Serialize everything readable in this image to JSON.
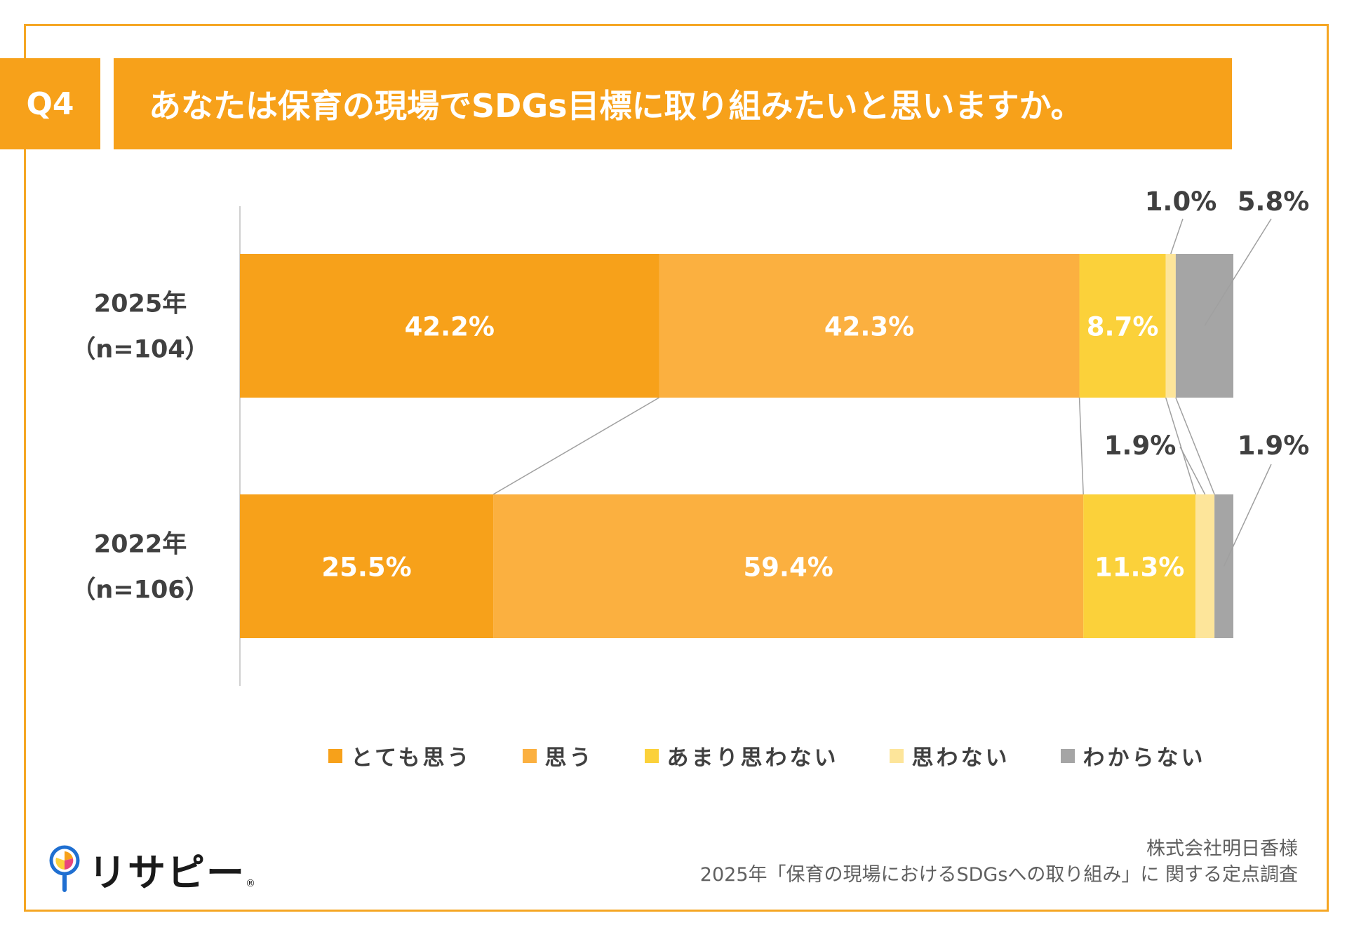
{
  "header": {
    "badge": "Q4",
    "title": "あなたは保育の現場でSDGs目標に取り組みたいと思いますか。"
  },
  "colors": {
    "frame": "#f5a623",
    "header": "#f7a11a",
    "series": [
      "#f7a11a",
      "#fbb040",
      "#fbd13a",
      "#fde59a",
      "#a5a5a5"
    ]
  },
  "chart_data": {
    "type": "bar",
    "orientation": "horizontal",
    "stacked": "100%",
    "categories": [
      {
        "label": "2025年",
        "sublabel": "（n=104）"
      },
      {
        "label": "2022年",
        "sublabel": "（n=106）"
      }
    ],
    "series": [
      {
        "name": "とても思う",
        "values": [
          42.2,
          25.5
        ],
        "labels": [
          "42.2%",
          "25.5%"
        ]
      },
      {
        "name": "思う",
        "values": [
          42.3,
          59.4
        ],
        "labels": [
          "42.3%",
          "59.4%"
        ]
      },
      {
        "name": "あまり思わない",
        "values": [
          8.7,
          11.3
        ],
        "labels": [
          "8.7%",
          "11.3%"
        ]
      },
      {
        "name": "思わない",
        "values": [
          1.0,
          1.9
        ],
        "labels": [
          "1.0%",
          "1.9%"
        ]
      },
      {
        "name": "わからない",
        "values": [
          5.8,
          1.9
        ],
        "labels": [
          "5.8%",
          "1.9%"
        ]
      }
    ],
    "xlim": [
      0,
      100
    ],
    "legend": "bottom",
    "series_lines": true
  },
  "legend": {
    "items": [
      "とても思う",
      "思う",
      "あまり思わない",
      "思わない",
      "わからない"
    ]
  },
  "logo": {
    "text": "リサピー",
    "dot": "®"
  },
  "footer": {
    "line1": "株式会社明日香様",
    "line2": "2025年「保育の現場におけるSDGsへの取り組み」に 関する定点調査"
  }
}
